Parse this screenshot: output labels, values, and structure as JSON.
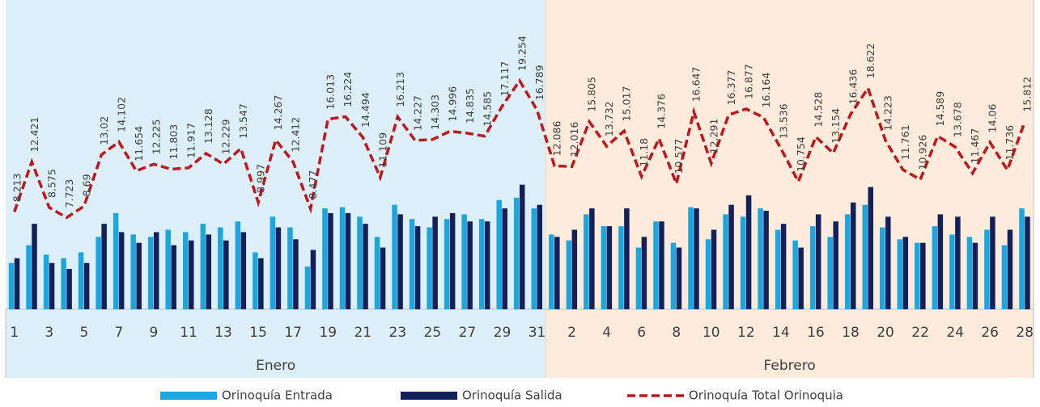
{
  "chart_data": {
    "type": "bar",
    "groups": [
      {
        "name": "Enero",
        "color": "#ddf0f9",
        "categories": [
          "1",
          null,
          "3",
          null,
          "5",
          null,
          "7",
          null,
          "9",
          null,
          "11",
          null,
          "13",
          null,
          "15",
          null,
          "17",
          null,
          "19",
          null,
          "21",
          null,
          "23",
          null,
          "25",
          null,
          "27",
          null,
          "29",
          null,
          "31"
        ]
      },
      {
        "name": "Febrero",
        "color": "#fdebdc",
        "categories": [
          null,
          "2",
          null,
          "4",
          null,
          "6",
          null,
          "8",
          null,
          "10",
          null,
          "12",
          null,
          "14",
          null,
          "16",
          null,
          "18",
          null,
          "20",
          null,
          "22",
          null,
          "24",
          null,
          "26",
          null,
          "28"
        ]
      }
    ],
    "series": [
      {
        "name": "Orinoquía Entrada",
        "type": "bar",
        "color": "#1ca6df",
        "values": [
          3.9,
          5.4,
          4.6,
          4.3,
          4.8,
          6.1,
          8.1,
          6.3,
          6.1,
          6.7,
          6.5,
          7.2,
          6.9,
          7.4,
          4.8,
          7.8,
          6.9,
          3.6,
          8.5,
          8.6,
          7.8,
          6.1,
          8.8,
          7.6,
          6.9,
          7.6,
          8.0,
          7.6,
          9.2,
          9.4,
          8.5,
          6.3,
          5.8,
          8.0,
          7.0,
          7.0,
          5.2,
          7.4,
          5.6,
          8.6,
          5.9,
          8.0,
          7.8,
          8.5,
          6.7,
          5.8,
          7.0,
          6.1,
          8.0,
          8.8,
          6.9,
          5.9,
          5.6,
          7.0,
          6.3,
          6.1,
          6.7,
          5.4,
          8.5
        ]
      },
      {
        "name": "Orinoquía Salida",
        "type": "bar",
        "color": "#14205a",
        "values": [
          4.3,
          7.2,
          3.9,
          3.4,
          3.9,
          7.2,
          6.5,
          5.6,
          6.5,
          5.4,
          5.8,
          6.3,
          5.8,
          6.5,
          4.3,
          6.9,
          5.9,
          5.0,
          8.1,
          8.1,
          7.2,
          5.2,
          8.0,
          7.0,
          7.8,
          8.1,
          7.4,
          7.4,
          8.5,
          10.5,
          8.8,
          6.1,
          6.7,
          8.5,
          7.0,
          8.5,
          6.1,
          7.4,
          5.2,
          8.5,
          6.7,
          8.8,
          9.6,
          8.3,
          7.2,
          5.2,
          8.0,
          7.4,
          9.0,
          10.3,
          7.8,
          6.1,
          5.6,
          8.0,
          7.8,
          5.6,
          7.8,
          6.7,
          7.8
        ]
      },
      {
        "name": "Orinoquía Total Orinoquia",
        "type": "line",
        "color": "#c0161e",
        "values": [
          8.213,
          12.421,
          8.575,
          7.723,
          8.69,
          13.02,
          14.102,
          11.654,
          12.225,
          11.803,
          11.917,
          13.128,
          12.229,
          13.547,
          8.997,
          14.267,
          12.412,
          8.477,
          16.013,
          16.224,
          14.494,
          11.109,
          16.213,
          14.227,
          14.303,
          14.996,
          14.835,
          14.585,
          17.117,
          19.254,
          16.789,
          12.086,
          12.016,
          15.805,
          13.732,
          15.017,
          11.18,
          14.376,
          10.577,
          16.647,
          12.291,
          16.377,
          16.877,
          16.164,
          13.536,
          10.754,
          14.528,
          13.154,
          16.436,
          18.622,
          14.223,
          11.761,
          10.926,
          14.589,
          13.678,
          11.467,
          14.06,
          11.736,
          15.812
        ]
      }
    ]
  }
}
